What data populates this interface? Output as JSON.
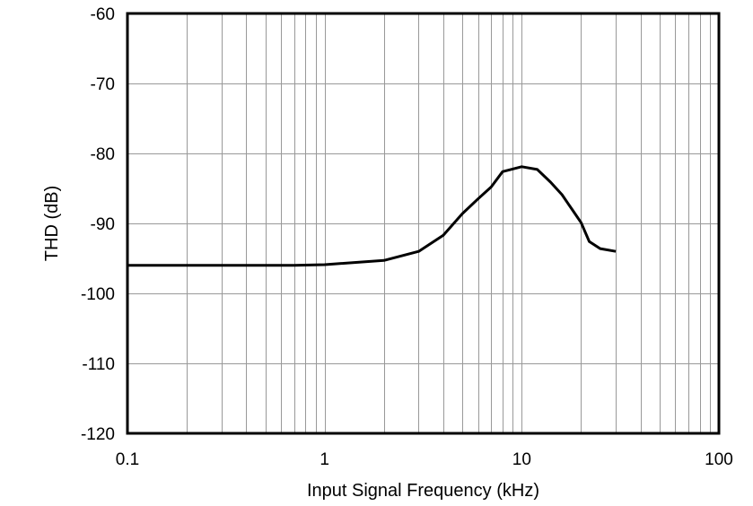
{
  "chart_data": {
    "type": "line",
    "title": "",
    "xlabel": "Input Signal Frequency (kHz)",
    "ylabel": "THD (dB)",
    "xscale": "log",
    "xlim": [
      0.1,
      100
    ],
    "ylim": [
      -120,
      -60
    ],
    "grid": true,
    "legend": null,
    "xticks": [
      0.1,
      1,
      10,
      100
    ],
    "xtick_labels": [
      "0.1",
      "1",
      "10",
      "100"
    ],
    "yticks": [
      -60,
      -70,
      -80,
      -90,
      -100,
      -110,
      -120
    ],
    "ytick_labels": [
      "-60",
      "-70",
      "-80",
      "-90",
      "-100",
      "-110",
      "-120"
    ],
    "series": [
      {
        "name": "THD",
        "color": "#000000",
        "x": [
          0.1,
          0.2,
          0.5,
          0.7,
          1,
          2,
          3,
          4,
          5,
          6,
          7,
          8,
          10,
          12,
          14,
          16,
          18,
          20,
          22,
          25,
          30
        ],
        "y": [
          -96.0,
          -96.0,
          -96.0,
          -96.0,
          -95.9,
          -95.3,
          -94.0,
          -91.7,
          -88.6,
          -86.5,
          -84.8,
          -82.6,
          -81.9,
          -82.3,
          -84.1,
          -85.9,
          -88.0,
          -89.9,
          -92.6,
          -93.6,
          -94.0
        ]
      }
    ]
  },
  "colors": {
    "background": "#ffffff",
    "grid": "#999999",
    "axes": "#000000",
    "line": "#000000"
  }
}
